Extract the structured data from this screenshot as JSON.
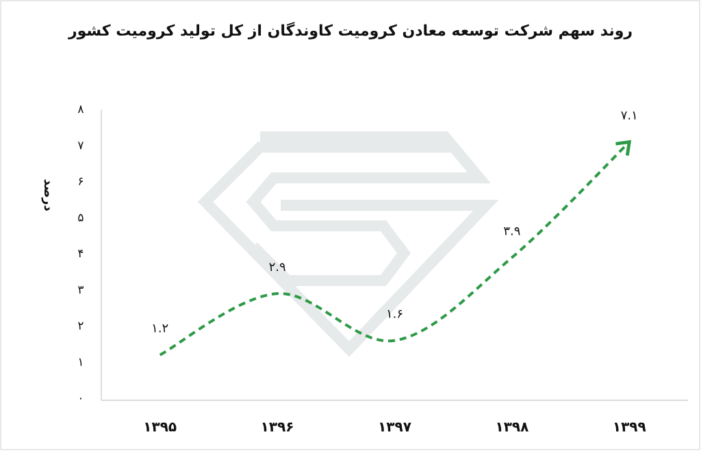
{
  "chart_data": {
    "type": "line",
    "title": "روند سهم شرکت توسعه معادن کرومیت کاوندگان  از کل تولید کرومیت کشور",
    "y_label": "درصد",
    "categories": [
      "۱۳۹۵",
      "۱۳۹۶",
      "۱۳۹۷",
      "۱۳۹۸",
      "۱۳۹۹"
    ],
    "series": [
      {
        "color": "#2e9a47",
        "values": [
          1.2,
          2.9,
          1.6,
          3.9,
          7.1
        ],
        "value_labels": [
          "۱.۲",
          "۲.۹",
          "۱.۶",
          "۳.۹",
          "۷.۱"
        ]
      }
    ],
    "ylim": [
      0,
      8
    ],
    "yticks": [
      {
        "value": 0,
        "label": "۰"
      },
      {
        "value": 1,
        "label": "۱"
      },
      {
        "value": 2,
        "label": "۲"
      },
      {
        "value": 3,
        "label": "۳"
      },
      {
        "value": 4,
        "label": "۴"
      },
      {
        "value": 5,
        "label": "۵"
      },
      {
        "value": 6,
        "label": "۶"
      },
      {
        "value": 7,
        "label": "۷"
      },
      {
        "value": 8,
        "label": "۸"
      }
    ],
    "smooth": true
  }
}
